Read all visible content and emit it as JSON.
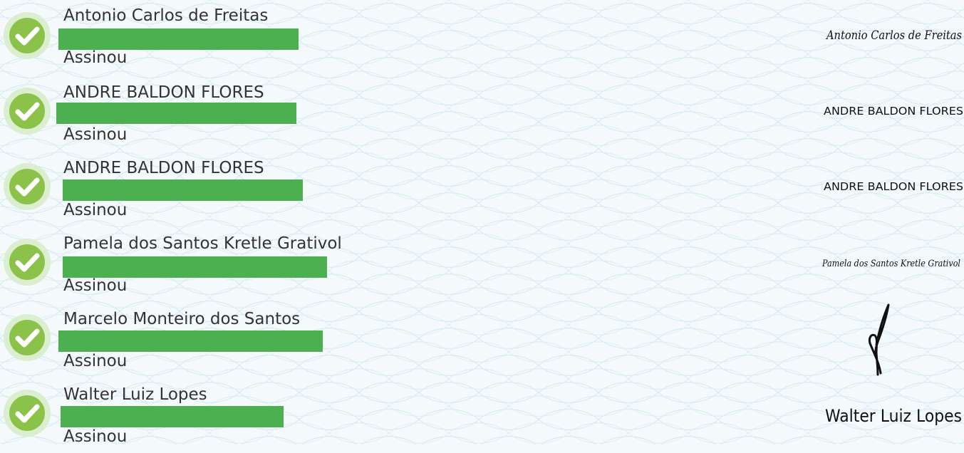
{
  "signers": [
    {
      "name": "Antonio Carlos de Freitas",
      "status": "Assinou",
      "signature_text": "Antonio Carlos de Freitas",
      "signature_style": "script"
    },
    {
      "name": "ANDRE BALDON FLORES",
      "status": "Assinou",
      "signature_text": "ANDRE BALDON FLORES",
      "signature_style": "hand-caps"
    },
    {
      "name": "ANDRE BALDON FLORES",
      "status": "Assinou",
      "signature_text": "ANDRE BALDON FLORES",
      "signature_style": "hand-caps"
    },
    {
      "name": "Pamela dos Santos Kretle Grativol",
      "status": "Assinou",
      "signature_text": "Pamela dos Santos Kretle Grativol",
      "signature_style": "fine-script"
    },
    {
      "name": "Marcelo Monteiro dos Santos",
      "status": "Assinou",
      "signature_text": "",
      "signature_style": "drawn"
    },
    {
      "name": "Walter Luiz Lopes",
      "status": "Assinou",
      "signature_text": "Walter Luiz Lopes",
      "signature_style": "hand-print"
    }
  ],
  "colors": {
    "check_ring": "#dbeecf",
    "check_fill": "#8bc34a",
    "check_mark": "#ffffff",
    "redaction_bar": "#4caf50",
    "text": "#333333",
    "signature_ink": "#111111",
    "background": "#f4fafc",
    "guilloche": "#cfe6ef"
  },
  "icons": {
    "status": "check-circle-icon"
  }
}
